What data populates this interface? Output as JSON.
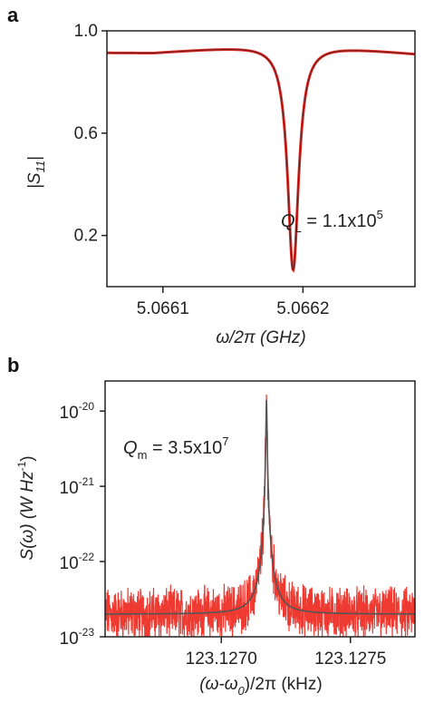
{
  "chart_data": [
    {
      "panel": "a",
      "type": "line",
      "ylabel_main": "|S",
      "ylabel_sub": "11",
      "ylabel_close": "|",
      "xlabel_main": "ω/2π (GHz)",
      "xlim": [
        5.06606,
        5.06628
      ],
      "ylim": [
        0.0,
        1.0
      ],
      "x_ticks": [
        "5.0661",
        "5.0662"
      ],
      "x_tick_values": [
        5.0661,
        5.0662
      ],
      "y_ticks": [
        "1.0",
        "0.6",
        "0.2"
      ],
      "y_tick_values": [
        1.0,
        0.6,
        0.2
      ],
      "annotation": {
        "symbol": "Q",
        "sub": "L",
        "text": " = 1.1x10",
        "sup": "5"
      },
      "curve": {
        "center": 5.066193,
        "halfwidth": 4.8e-06,
        "depth": 0.89,
        "baseline": 0.955,
        "slope_left": -0.04,
        "slope_right": 0.05
      },
      "colors": {
        "data": "#e0312a",
        "fit": "#7a1a1a"
      }
    },
    {
      "panel": "b",
      "type": "line",
      "ylabel_main": "S(ω) (W Hz",
      "ylabel_sup": "-1",
      "ylabel_close": ")",
      "xlabel_main": "(ω-ω",
      "xlabel_sub": "0",
      "xlabel_close": ")/2π (kHz)",
      "xlim": [
        123.12655,
        123.12775
      ],
      "ylim_log10": [
        -23,
        -19.6
      ],
      "x_ticks": [
        "123.1270",
        "123.1275"
      ],
      "x_tick_values": [
        123.127,
        123.1275
      ],
      "y_ticks": [
        {
          "base": "10",
          "exp": "-20",
          "log": -20
        },
        {
          "base": "10",
          "exp": "-21",
          "log": -21
        },
        {
          "base": "10",
          "exp": "-22",
          "log": -22
        },
        {
          "base": "10",
          "exp": "-23",
          "log": -23
        }
      ],
      "annotation": {
        "symbol": "Q",
        "sub": "m",
        "text": " = 3.5x10",
        "sup": "7"
      },
      "curve": {
        "center": 123.127175,
        "halfwidth": 1.8e-06,
        "peak_log": -19.85,
        "floor_log": -22.7
      },
      "colors": {
        "data": "#ef3a32",
        "fit": "#555555"
      }
    }
  ]
}
